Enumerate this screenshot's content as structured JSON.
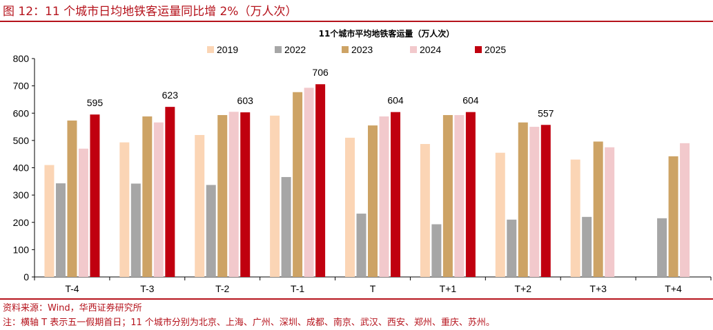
{
  "header": {
    "figure_title": "图 12：11 个城市日均地铁客运量同比增 2%（万人次）"
  },
  "footer": {
    "source": "资料来源：Wind，华西证券研究所",
    "note": "注：横轴 T 表示五一假期首日；11 个城市分别为北京、上海、广州、深圳、成都、南京、武汉、西安、郑州、重庆、苏州。"
  },
  "chart_data": {
    "type": "bar",
    "title": "11个城市平均地铁客运量（万人次）",
    "categories": [
      "T-4",
      "T-3",
      "T-2",
      "T-1",
      "T",
      "T+1",
      "T+2",
      "T+3",
      "T+4"
    ],
    "ylim": [
      0,
      800
    ],
    "yticks": [
      0,
      100,
      200,
      300,
      400,
      500,
      600,
      700,
      800
    ],
    "legend_position": "top",
    "grid": false,
    "series": [
      {
        "name": "2019",
        "color": "#fbd5b5",
        "values": [
          410,
          493,
          520,
          591,
          510,
          487,
          455,
          430,
          null
        ]
      },
      {
        "name": "2022",
        "color": "#a6a6a6",
        "values": [
          343,
          342,
          337,
          366,
          232,
          193,
          210,
          220,
          215
        ]
      },
      {
        "name": "2023",
        "color": "#cda365",
        "values": [
          573,
          588,
          593,
          677,
          555,
          593,
          566,
          496,
          442
        ]
      },
      {
        "name": "2024",
        "color": "#f2c9cc",
        "values": [
          470,
          566,
          605,
          693,
          588,
          593,
          550,
          475,
          490
        ]
      },
      {
        "name": "2025",
        "color": "#c0000f",
        "values": [
          595,
          623,
          603,
          706,
          604,
          604,
          557,
          null,
          null
        ]
      }
    ],
    "data_labels": {
      "series": "2025",
      "values": [
        "595",
        "623",
        "603",
        "706",
        "604",
        "604",
        "557"
      ]
    }
  }
}
